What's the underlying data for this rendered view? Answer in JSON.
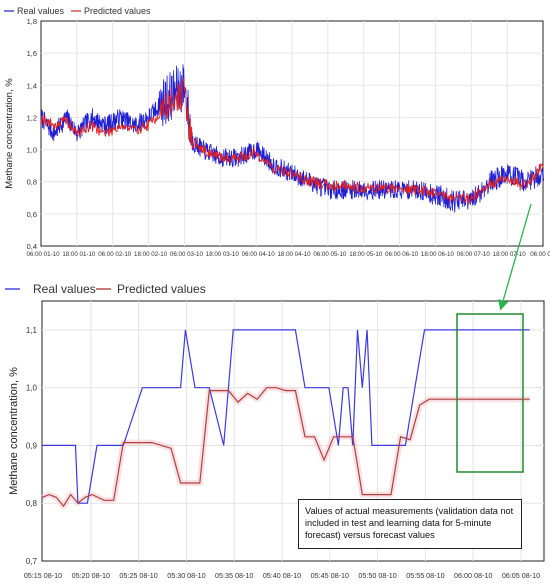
{
  "chart_data": [
    {
      "type": "line",
      "title": "",
      "xlabel": "",
      "ylabel": "Methane concentration, %",
      "ylim": [
        0.4,
        1.8
      ],
      "yticks": [
        "0,4",
        "0,6",
        "0,8",
        "1,0",
        "1,2",
        "1,4",
        "1,6",
        "1,8"
      ],
      "xticks": [
        "06:00 01-10",
        "18:00 01-10",
        "06:00 02-10",
        "18:00 02-10",
        "06:00 03-10",
        "18:00 03-10",
        "06:00 04-10",
        "18:00 04-10",
        "06:00 05-10",
        "18:00 05-10",
        "06:00 06-10",
        "18:00 06-10",
        "06:00 07-10",
        "18:00 07-10",
        "06:00 08-1"
      ],
      "legend": {
        "placement": "top-left"
      },
      "series": [
        {
          "name": "Real values",
          "color": "#1f1fd6",
          "level_profile": [
            [
              0,
              1.2
            ],
            [
              0.35,
              1.1
            ],
            [
              0.7,
              1.2
            ],
            [
              1.0,
              1.1
            ],
            [
              1.4,
              1.2
            ],
            [
              1.8,
              1.15
            ],
            [
              2.2,
              1.2
            ],
            [
              2.6,
              1.15
            ],
            [
              3.0,
              1.2
            ],
            [
              3.4,
              1.3
            ],
            [
              3.7,
              1.35
            ],
            [
              4.0,
              1.4
            ],
            [
              4.2,
              1.05
            ],
            [
              4.5,
              1.0
            ],
            [
              5.0,
              0.95
            ],
            [
              5.5,
              0.95
            ],
            [
              6.0,
              1.0
            ],
            [
              6.5,
              0.9
            ],
            [
              7.0,
              0.85
            ],
            [
              7.5,
              0.8
            ],
            [
              8.0,
              0.75
            ],
            [
              8.5,
              0.75
            ],
            [
              9.0,
              0.75
            ],
            [
              9.5,
              0.75
            ],
            [
              10.0,
              0.75
            ],
            [
              10.5,
              0.75
            ],
            [
              11.0,
              0.72
            ],
            [
              11.5,
              0.68
            ],
            [
              12.0,
              0.68
            ],
            [
              12.5,
              0.8
            ],
            [
              13.0,
              0.85
            ],
            [
              13.5,
              0.8
            ],
            [
              14.0,
              0.85
            ]
          ]
        },
        {
          "name": "Predicted values",
          "color": "#e02020",
          "level_profile": [
            [
              0,
              1.2
            ],
            [
              0.35,
              1.15
            ],
            [
              0.7,
              1.18
            ],
            [
              1.0,
              1.1
            ],
            [
              1.4,
              1.15
            ],
            [
              1.8,
              1.1
            ],
            [
              2.2,
              1.15
            ],
            [
              2.6,
              1.12
            ],
            [
              3.0,
              1.15
            ],
            [
              3.4,
              1.25
            ],
            [
              3.7,
              1.3
            ],
            [
              4.0,
              1.35
            ],
            [
              4.2,
              1.05
            ],
            [
              4.5,
              1.0
            ],
            [
              5.0,
              0.95
            ],
            [
              5.5,
              0.95
            ],
            [
              6.0,
              0.98
            ],
            [
              6.5,
              0.88
            ],
            [
              7.0,
              0.85
            ],
            [
              7.5,
              0.8
            ],
            [
              8.0,
              0.78
            ],
            [
              8.5,
              0.78
            ],
            [
              9.0,
              0.76
            ],
            [
              9.5,
              0.76
            ],
            [
              10.0,
              0.76
            ],
            [
              10.5,
              0.75
            ],
            [
              11.0,
              0.73
            ],
            [
              11.5,
              0.7
            ],
            [
              12.0,
              0.7
            ],
            [
              12.5,
              0.78
            ],
            [
              13.0,
              0.82
            ],
            [
              13.5,
              0.78
            ],
            [
              14.0,
              0.9
            ]
          ]
        }
      ]
    },
    {
      "type": "line",
      "title": "",
      "xlabel": "",
      "ylabel": "Methane concentration, %",
      "ylim": [
        0.7,
        1.15
      ],
      "yticks": [
        "0,7",
        "0,8",
        "0,9",
        "1,0",
        "1,1"
      ],
      "xticks": [
        "05:15 08-10",
        "05:20 08-10",
        "05:25 08-10",
        "05:30 08-10",
        "05:35 08-10",
        "05:40 08-10",
        "05:45 08-10",
        "05:50 08-10",
        "05:55 08-10",
        "06:00 08-10",
        "06:05 08-10"
      ],
      "legend": {
        "placement": "top-left"
      },
      "series": [
        {
          "name": "Real values",
          "color": "#3a3ae0",
          "x": [
            0,
            1.4,
            1.5,
            1.9,
            2.3,
            2.6,
            3.4,
            4.2,
            4.5,
            4.6,
            5.2,
            5.8,
            6.0,
            6.4,
            6.6,
            7.0,
            7.6,
            8.0,
            8.2,
            8.4,
            8.6,
            8.8,
            9.4,
            9.8,
            10.0,
            10.2,
            10.6,
            11.0,
            11.5,
            12.0,
            12.4,
            12.6,
            12.8,
            13.0,
            13.2,
            13.4,
            13.6,
            13.8,
            14.2,
            15.0,
            15.2,
            15.6,
            16.0,
            16.4,
            16.8,
            17.2,
            17.6,
            18.0,
            18.4,
            18.8,
            19.0,
            19.2,
            19.6,
            20.0,
            20.4
          ],
          "values": [
            0.9,
            0.9,
            0.8,
            0.8,
            0.9,
            0.9,
            0.9,
            1.0,
            1.0,
            1.0,
            1.0,
            1.0,
            1.1,
            1.0,
            1.0,
            1.0,
            0.9,
            1.1,
            1.1,
            1.1,
            1.1,
            1.1,
            1.1,
            1.1,
            1.1,
            1.1,
            1.1,
            1.0,
            1.0,
            1.0,
            0.9,
            1.0,
            1.0,
            0.9,
            1.1,
            1.0,
            1.1,
            0.9,
            0.9,
            0.9,
            0.9,
            1.0,
            1.1,
            1.1,
            1.1,
            1.1,
            1.1,
            1.1,
            1.1,
            1.1,
            1.1,
            1.1,
            1.1,
            1.1,
            1.1
          ]
        },
        {
          "name": "Predicted values",
          "color": "#b04040",
          "x": [
            0,
            0.3,
            0.6,
            0.9,
            1.2,
            1.5,
            1.8,
            2.1,
            2.6,
            3.0,
            3.4,
            3.8,
            4.2,
            4.6,
            5.0,
            5.4,
            5.8,
            6.2,
            6.6,
            7.0,
            7.4,
            7.8,
            8.2,
            8.6,
            9.0,
            9.4,
            9.8,
            10.2,
            10.6,
            11.0,
            11.4,
            11.8,
            12.2,
            12.6,
            13.0,
            13.4,
            13.8,
            14.2,
            14.6,
            15.0,
            15.4,
            15.8,
            16.2,
            16.6,
            17.0,
            17.4,
            17.8,
            18.2,
            18.6,
            19.0,
            19.4,
            19.8,
            20.2,
            20.4
          ],
          "values": [
            0.81,
            0.815,
            0.81,
            0.795,
            0.815,
            0.8,
            0.81,
            0.815,
            0.805,
            0.805,
            0.905,
            0.905,
            0.905,
            0.905,
            0.9,
            0.895,
            0.835,
            0.835,
            0.835,
            0.995,
            0.995,
            0.995,
            0.975,
            0.99,
            0.98,
            1.0,
            1.0,
            0.995,
            0.995,
            0.915,
            0.915,
            0.875,
            0.915,
            0.915,
            0.915,
            0.815,
            0.815,
            0.815,
            0.815,
            0.915,
            0.91,
            0.97,
            0.98,
            0.98,
            0.98,
            0.98,
            0.98,
            0.98,
            0.98,
            0.98,
            0.98,
            0.98,
            0.98,
            0.98
          ]
        }
      ],
      "annotation": "Values of actual measurements (validation data not included in test and learning data for 5-minute forecast) versus forecast values"
    }
  ]
}
